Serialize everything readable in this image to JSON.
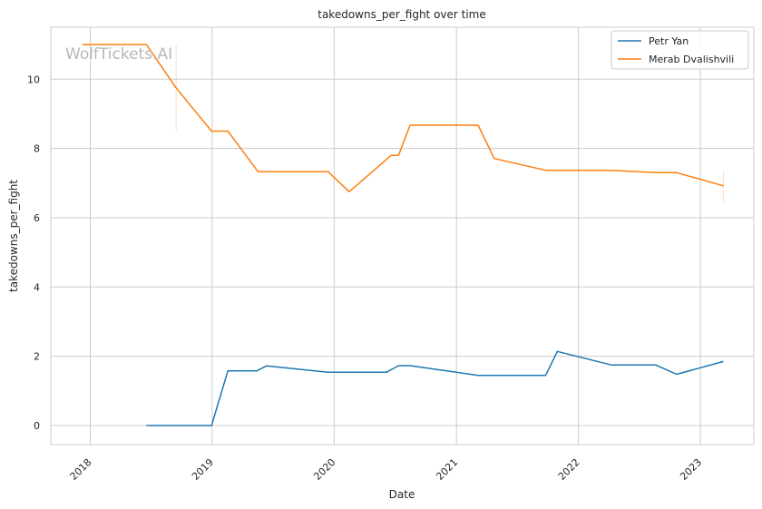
{
  "watermark": "WolfTickets.AI",
  "chart_data": {
    "type": "line",
    "title": "takedowns_per_fight over time",
    "xlabel": "Date",
    "ylabel": "takedowns_per_fight",
    "x_axis_type": "date",
    "xlim": [
      "2017-09-05",
      "2023-06-10"
    ],
    "ylim": [
      -0.55,
      11.5
    ],
    "x_ticks": [
      {
        "date": "2018-01-01",
        "label": "2018"
      },
      {
        "date": "2019-01-01",
        "label": "2019"
      },
      {
        "date": "2020-01-01",
        "label": "2020"
      },
      {
        "date": "2021-01-01",
        "label": "2021"
      },
      {
        "date": "2022-01-01",
        "label": "2022"
      },
      {
        "date": "2023-01-01",
        "label": "2023"
      }
    ],
    "y_ticks": [
      {
        "value": 0,
        "label": "0"
      },
      {
        "value": 2,
        "label": "2"
      },
      {
        "value": 4,
        "label": "4"
      },
      {
        "value": 6,
        "label": "6"
      },
      {
        "value": 8,
        "label": "8"
      },
      {
        "value": 10,
        "label": "10"
      }
    ],
    "grid": true,
    "legend_position": "top-right",
    "series": [
      {
        "name": "Petr Yan",
        "color": "#1f77b4",
        "points": [
          {
            "date": "2018-06-18",
            "value": 0
          },
          {
            "date": "2018-12-30",
            "value": 0
          },
          {
            "date": "2019-02-17",
            "value": 1.58
          },
          {
            "date": "2019-05-15",
            "value": 1.58
          },
          {
            "date": "2019-06-12",
            "value": 1.72
          },
          {
            "date": "2019-12-14",
            "value": 1.54
          },
          {
            "date": "2020-06-06",
            "value": 1.54
          },
          {
            "date": "2020-07-12",
            "value": 1.73
          },
          {
            "date": "2020-08-15",
            "value": 1.73
          },
          {
            "date": "2021-03-07",
            "value": 1.45
          },
          {
            "date": "2021-09-25",
            "value": 1.45
          },
          {
            "date": "2021-10-30",
            "value": 2.14
          },
          {
            "date": "2022-04-09",
            "value": 1.75
          },
          {
            "date": "2022-08-20",
            "value": 1.75
          },
          {
            "date": "2022-10-22",
            "value": 1.48
          },
          {
            "date": "2023-03-11",
            "value": 1.85
          }
        ]
      },
      {
        "name": "Merab Dvalishvili",
        "color": "#ff7f0e",
        "points": [
          {
            "date": "2017-12-09",
            "value": 11.0
          },
          {
            "date": "2018-06-18",
            "value": 11.0
          },
          {
            "date": "2018-09-15",
            "value": 9.75
          },
          {
            "date": "2018-12-30",
            "value": 8.5
          },
          {
            "date": "2019-02-17",
            "value": 8.5
          },
          {
            "date": "2019-05-18",
            "value": 7.33
          },
          {
            "date": "2019-12-14",
            "value": 7.33
          },
          {
            "date": "2020-02-15",
            "value": 6.75
          },
          {
            "date": "2020-06-20",
            "value": 7.8
          },
          {
            "date": "2020-07-12",
            "value": 7.8
          },
          {
            "date": "2020-08-15",
            "value": 8.67
          },
          {
            "date": "2021-03-07",
            "value": 8.67
          },
          {
            "date": "2021-04-24",
            "value": 7.71
          },
          {
            "date": "2021-09-25",
            "value": 7.37
          },
          {
            "date": "2022-04-09",
            "value": 7.37
          },
          {
            "date": "2022-08-20",
            "value": 7.3
          },
          {
            "date": "2022-10-22",
            "value": 7.3
          },
          {
            "date": "2023-03-11",
            "value": 6.92
          }
        ]
      }
    ]
  }
}
